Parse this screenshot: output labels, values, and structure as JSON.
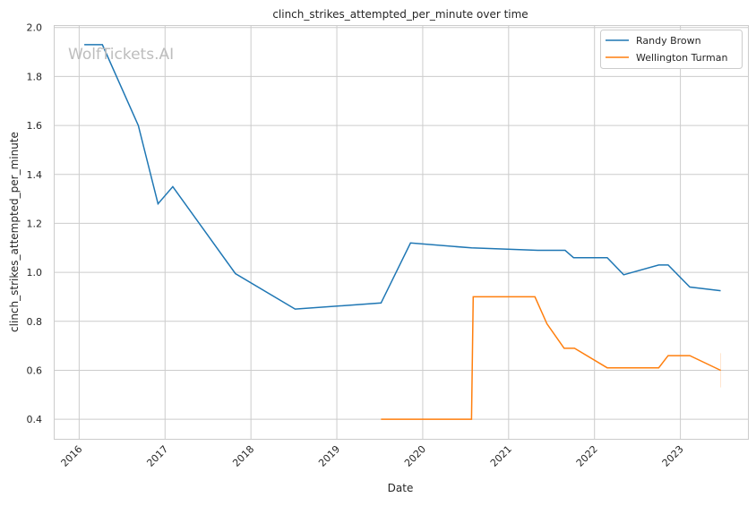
{
  "chart_data": {
    "type": "line",
    "title": "clinch_strikes_attempted_per_minute over time",
    "xlabel": "Date",
    "ylabel": "clinch_strikes_attempted_per_minute",
    "watermark": "WolfTickets.AI",
    "xlim": [
      "2015-09-15",
      "2023-10-15"
    ],
    "ylim": [
      0.32,
      2.01
    ],
    "x_ticks": [
      "2016",
      "2017",
      "2018",
      "2019",
      "2020",
      "2021",
      "2022",
      "2023"
    ],
    "y_ticks": [
      "0.4",
      "0.6",
      "0.8",
      "1.0",
      "1.2",
      "1.4",
      "1.6",
      "1.8",
      "2.0"
    ],
    "grid": true,
    "legend_position": "top-right",
    "series": [
      {
        "name": "Randy Brown",
        "color": "#1f77b4",
        "points": [
          [
            "2016-01-23",
            1.93
          ],
          [
            "2016-04-09",
            1.93
          ],
          [
            "2016-09-09",
            1.6
          ],
          [
            "2016-12-02",
            1.28
          ],
          [
            "2017-02-03",
            1.35
          ],
          [
            "2017-10-27",
            0.995
          ],
          [
            "2018-07-08",
            0.85
          ],
          [
            "2019-07-08",
            0.875
          ],
          [
            "2019-11-10",
            1.12
          ],
          [
            "2020-07-27",
            1.1
          ],
          [
            "2021-05-05",
            1.09
          ],
          [
            "2021-08-29",
            1.09
          ],
          [
            "2021-10-04",
            1.06
          ],
          [
            "2022-02-24",
            1.06
          ],
          [
            "2022-05-05",
            0.99
          ],
          [
            "2022-10-01",
            1.03
          ],
          [
            "2022-11-10",
            1.03
          ],
          [
            "2023-02-10",
            0.94
          ],
          [
            "2023-06-21",
            0.925
          ]
        ]
      },
      {
        "name": "Wellington Turman",
        "color": "#ff7f0e",
        "points": [
          [
            "2019-07-08",
            0.4
          ],
          [
            "2020-07-27",
            0.4
          ],
          [
            "2020-08-03",
            0.9
          ],
          [
            "2021-04-23",
            0.9
          ],
          [
            "2021-06-13",
            0.79
          ],
          [
            "2021-08-25",
            0.69
          ],
          [
            "2021-10-08",
            0.69
          ],
          [
            "2022-02-24",
            0.61
          ],
          [
            "2022-10-01",
            0.61
          ],
          [
            "2022-11-10",
            0.66
          ],
          [
            "2023-02-10",
            0.66
          ],
          [
            "2023-06-21",
            0.6
          ]
        ]
      }
    ]
  }
}
